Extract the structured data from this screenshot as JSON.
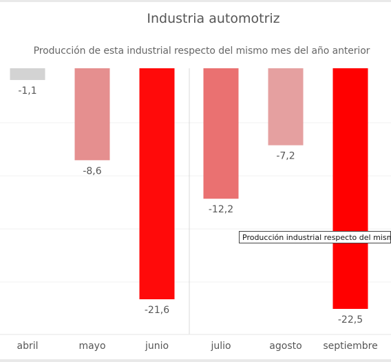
{
  "header": {
    "title": "Industria automotriz",
    "subtitle": "Producción de esta industrial respecto del mismo mes del año anterior"
  },
  "tooltip": {
    "text": "Producción industrial respecto del mismo"
  },
  "chart_data": {
    "type": "bar",
    "title": "Industria automotriz",
    "subtitle": "Producción de esta industrial respecto del mismo mes del año anterior",
    "xlabel": "",
    "ylabel": "",
    "categories": [
      "abril",
      "mayo",
      "junio",
      "julio",
      "agosto",
      "septiembre"
    ],
    "values": [
      -1.1,
      -8.6,
      -21.6,
      -12.2,
      -7.2,
      -22.5
    ],
    "value_labels": [
      "-1,1",
      "-8,6",
      "-21,6",
      "-12,2",
      "-7,2",
      "-22,5"
    ],
    "colors": [
      "#d3d3d3",
      "#e58f8f",
      "#ff0a0a",
      "#ea7171",
      "#e5a0a0",
      "#ff0000"
    ],
    "ylim": [
      -25,
      0
    ],
    "grid": true,
    "legend": "none"
  }
}
